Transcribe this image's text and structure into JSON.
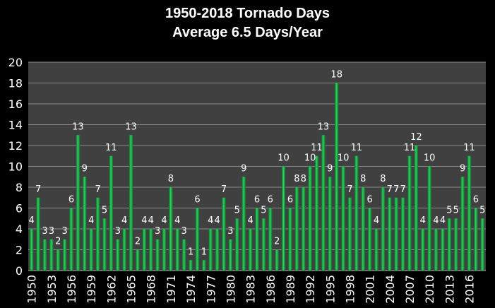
{
  "chart_data": {
    "type": "bar",
    "title": "1950-2018 Tornado Days",
    "subtitle": "Average 6.5 Days/Year",
    "xlabel": "",
    "ylabel": "",
    "ylim": [
      0,
      20
    ],
    "yticks": [
      0,
      2,
      4,
      6,
      8,
      10,
      12,
      14,
      16,
      18,
      20
    ],
    "grid": true,
    "legend": "none",
    "bar_color": "#1fa846",
    "plot_background": "#404040",
    "background": "#000000",
    "xtick_labels": [
      "1950",
      "1953",
      "1956",
      "1959",
      "1962",
      "1965",
      "1968",
      "1971",
      "1974",
      "1977",
      "1980",
      "1983",
      "1986",
      "1989",
      "1992",
      "1995",
      "1998",
      "2001",
      "2004",
      "2007",
      "2010",
      "2013",
      "2016"
    ],
    "categories": [
      1950,
      1951,
      1952,
      1953,
      1954,
      1955,
      1956,
      1957,
      1958,
      1959,
      1960,
      1961,
      1962,
      1963,
      1964,
      1965,
      1966,
      1967,
      1968,
      1969,
      1970,
      1971,
      1972,
      1973,
      1974,
      1975,
      1976,
      1977,
      1978,
      1979,
      1980,
      1981,
      1982,
      1983,
      1984,
      1985,
      1986,
      1987,
      1988,
      1989,
      1990,
      1991,
      1992,
      1993,
      1994,
      1995,
      1996,
      1997,
      1998,
      1999,
      2000,
      2001,
      2002,
      2003,
      2004,
      2005,
      2006,
      2007,
      2008,
      2009,
      2010,
      2011,
      2012,
      2013,
      2014,
      2015,
      2016,
      2017,
      2018
    ],
    "values": [
      4,
      7,
      3,
      3,
      2,
      3,
      6,
      13,
      9,
      4,
      7,
      5,
      11,
      3,
      4,
      13,
      2,
      4,
      4,
      3,
      4,
      8,
      4,
      3,
      1,
      6,
      1,
      4,
      4,
      7,
      3,
      5,
      9,
      4,
      6,
      5,
      6,
      2,
      10,
      6,
      8,
      8,
      10,
      11,
      13,
      9,
      18,
      10,
      7,
      11,
      8,
      6,
      4,
      8,
      7,
      7,
      7,
      11,
      12,
      4,
      10,
      4,
      4,
      5,
      5,
      9,
      11,
      6,
      5
    ]
  }
}
